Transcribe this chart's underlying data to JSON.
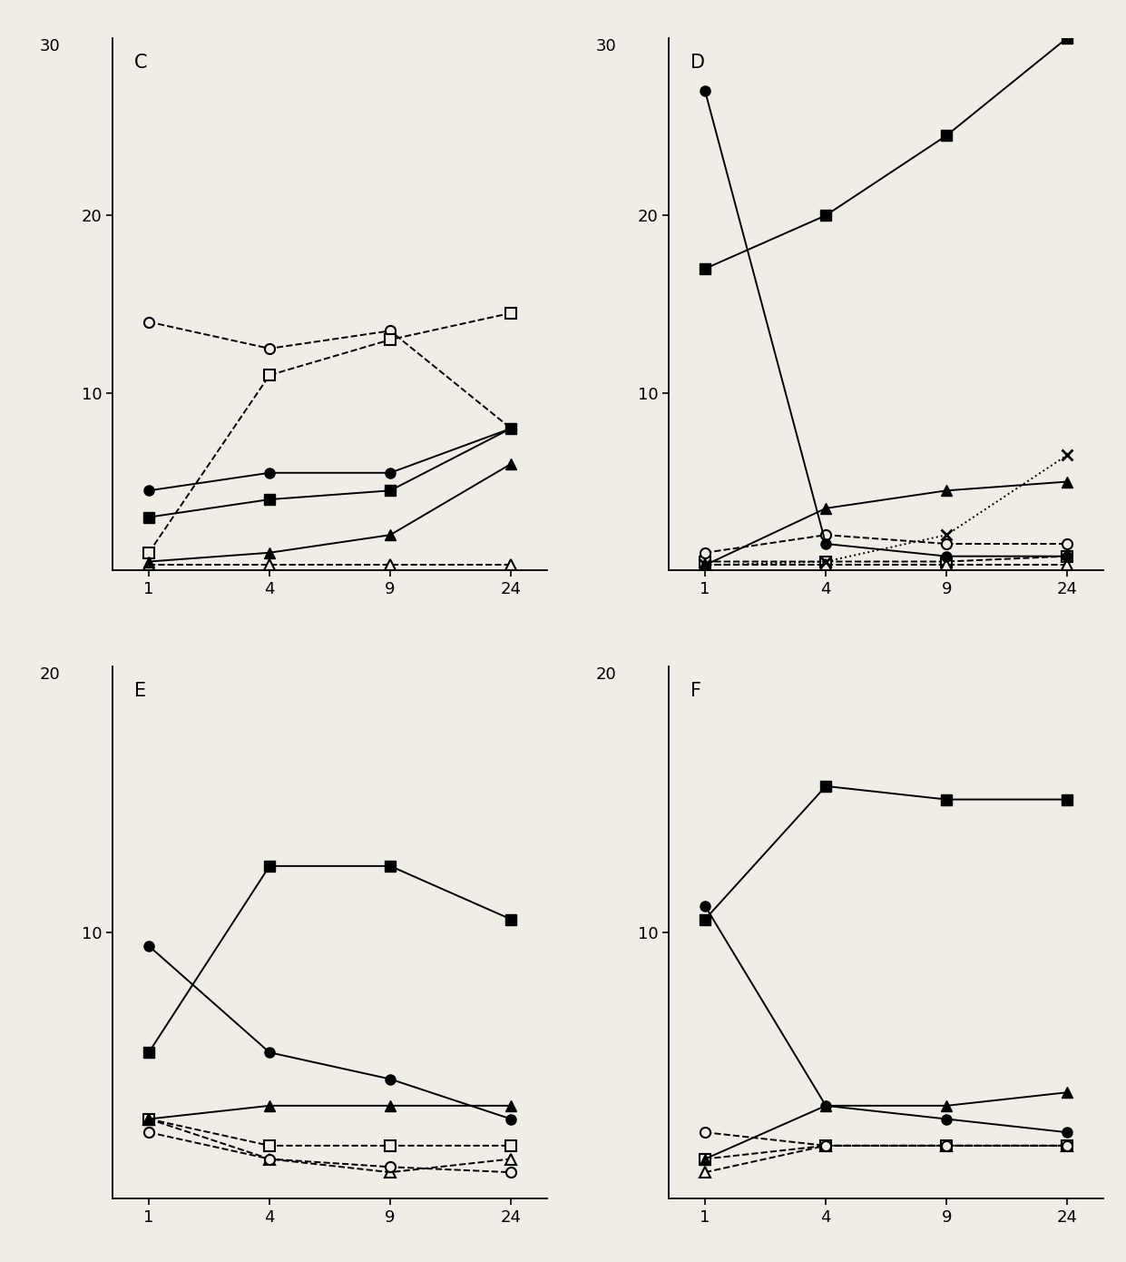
{
  "background_color": "#f0ece6",
  "x_positions": [
    0,
    1,
    2,
    3
  ],
  "x_labels": [
    "1",
    "4",
    "9",
    "24"
  ],
  "panel_C": {
    "label": "C",
    "ylim": [
      0,
      30
    ],
    "yticks": [
      10,
      20
    ],
    "ytop_label": "30",
    "series": [
      {
        "y": [
          4.5,
          5.5,
          5.5,
          8.0
        ],
        "marker": "o",
        "filled": true,
        "linestyle": "-",
        "zorder": 4
      },
      {
        "y": [
          14.0,
          12.5,
          13.5,
          8.0
        ],
        "marker": "o",
        "filled": false,
        "linestyle": "--",
        "zorder": 3
      },
      {
        "y": [
          3.0,
          4.0,
          4.5,
          8.0
        ],
        "marker": "s",
        "filled": true,
        "linestyle": "-",
        "zorder": 4
      },
      {
        "y": [
          1.0,
          11.0,
          13.0,
          14.5
        ],
        "marker": "s",
        "filled": false,
        "linestyle": "--",
        "zorder": 3
      },
      {
        "y": [
          0.5,
          1.0,
          2.0,
          6.0
        ],
        "marker": "^",
        "filled": true,
        "linestyle": "-",
        "zorder": 4
      },
      {
        "y": [
          0.3,
          0.3,
          0.3,
          0.3
        ],
        "marker": "^",
        "filled": false,
        "linestyle": "--",
        "zorder": 2
      }
    ]
  },
  "panel_D": {
    "label": "D",
    "ylim": [
      0,
      30
    ],
    "yticks": [
      10,
      20
    ],
    "ytop_label": "30",
    "series": [
      {
        "y": [
          27.0,
          1.5,
          0.8,
          0.8
        ],
        "marker": "o",
        "filled": true,
        "linestyle": "-",
        "zorder": 4
      },
      {
        "y": [
          1.0,
          2.0,
          1.5,
          1.5
        ],
        "marker": "o",
        "filled": false,
        "linestyle": "--",
        "zorder": 3
      },
      {
        "y": [
          17.0,
          20.0,
          24.5,
          30.0
        ],
        "marker": "s",
        "filled": true,
        "linestyle": "-",
        "zorder": 4
      },
      {
        "y": [
          0.5,
          0.5,
          0.5,
          0.8
        ],
        "marker": "s",
        "filled": false,
        "linestyle": "--",
        "zorder": 2
      },
      {
        "y": [
          0.3,
          3.5,
          4.5,
          5.0
        ],
        "marker": "^",
        "filled": true,
        "linestyle": "-",
        "zorder": 4
      },
      {
        "y": [
          0.3,
          0.3,
          0.3,
          0.3
        ],
        "marker": "^",
        "filled": false,
        "linestyle": "--",
        "zorder": 2
      },
      {
        "y": [
          0.3,
          0.5,
          2.0,
          6.5
        ],
        "marker": "x",
        "filled": true,
        "linestyle": ":",
        "zorder": 3
      }
    ]
  },
  "panel_E": {
    "label": "E",
    "ylim": [
      0,
      20
    ],
    "yticks": [
      10
    ],
    "ytop_label": "20",
    "series": [
      {
        "y": [
          9.5,
          5.5,
          4.5,
          3.0
        ],
        "marker": "o",
        "filled": true,
        "linestyle": "-",
        "zorder": 4
      },
      {
        "y": [
          2.5,
          1.5,
          1.2,
          1.0
        ],
        "marker": "o",
        "filled": false,
        "linestyle": "--",
        "zorder": 3
      },
      {
        "y": [
          5.5,
          12.5,
          12.5,
          10.5
        ],
        "marker": "s",
        "filled": true,
        "linestyle": "-",
        "zorder": 4
      },
      {
        "y": [
          3.0,
          2.0,
          2.0,
          2.0
        ],
        "marker": "s",
        "filled": false,
        "linestyle": "--",
        "zorder": 2
      },
      {
        "y": [
          3.0,
          3.5,
          3.5,
          3.5
        ],
        "marker": "^",
        "filled": true,
        "linestyle": "-",
        "zorder": 4
      },
      {
        "y": [
          3.0,
          1.5,
          1.0,
          1.5
        ],
        "marker": "^",
        "filled": false,
        "linestyle": "--",
        "zorder": 2
      }
    ]
  },
  "panel_F": {
    "label": "F",
    "ylim": [
      0,
      20
    ],
    "yticks": [
      10
    ],
    "ytop_label": "20",
    "series": [
      {
        "y": [
          11.0,
          3.5,
          3.0,
          2.5
        ],
        "marker": "o",
        "filled": true,
        "linestyle": "-",
        "zorder": 4
      },
      {
        "y": [
          2.5,
          2.0,
          2.0,
          2.0
        ],
        "marker": "o",
        "filled": false,
        "linestyle": "--",
        "zorder": 3
      },
      {
        "y": [
          10.5,
          15.5,
          15.0,
          15.0
        ],
        "marker": "s",
        "filled": true,
        "linestyle": "-",
        "zorder": 4
      },
      {
        "y": [
          1.5,
          2.0,
          2.0,
          2.0
        ],
        "marker": "s",
        "filled": false,
        "linestyle": "--",
        "zorder": 2
      },
      {
        "y": [
          1.5,
          3.5,
          3.5,
          4.0
        ],
        "marker": "^",
        "filled": true,
        "linestyle": "-",
        "zorder": 4
      },
      {
        "y": [
          1.0,
          2.0,
          2.0,
          2.0
        ],
        "marker": "^",
        "filled": false,
        "linestyle": "--",
        "zorder": 2
      }
    ]
  },
  "markersize": 8,
  "linewidth": 1.4
}
